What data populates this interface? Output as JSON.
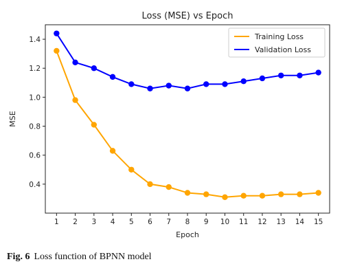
{
  "caption": {
    "label": "Fig. 6",
    "text": "Loss function of BPNN model"
  },
  "chart_data": {
    "type": "line",
    "title": "Loss (MSE) vs Epoch",
    "xlabel": "Epoch",
    "ylabel": "MSE",
    "x": [
      1,
      2,
      3,
      4,
      5,
      6,
      7,
      8,
      9,
      10,
      11,
      12,
      13,
      14,
      15
    ],
    "xlim": [
      0.4,
      15.6
    ],
    "ylim": [
      0.2,
      1.5
    ],
    "yticks": [
      0.4,
      0.6,
      0.8,
      1.0,
      1.2,
      1.4
    ],
    "ytick_labels": [
      "0.4",
      "0.6",
      "0.8",
      "1.0",
      "1.2",
      "1.4"
    ],
    "legend_position": "top-right",
    "grid": false,
    "series": [
      {
        "name": "Training Loss",
        "color": "#FFA500",
        "values": [
          1.32,
          0.98,
          0.81,
          0.63,
          0.5,
          0.4,
          0.38,
          0.34,
          0.33,
          0.31,
          0.32,
          0.32,
          0.33,
          0.33,
          0.34
        ]
      },
      {
        "name": "Validation Loss",
        "color": "#0000FF",
        "values": [
          1.44,
          1.24,
          1.2,
          1.14,
          1.09,
          1.06,
          1.08,
          1.06,
          1.09,
          1.09,
          1.11,
          1.13,
          1.15,
          1.15,
          1.17
        ]
      }
    ]
  }
}
